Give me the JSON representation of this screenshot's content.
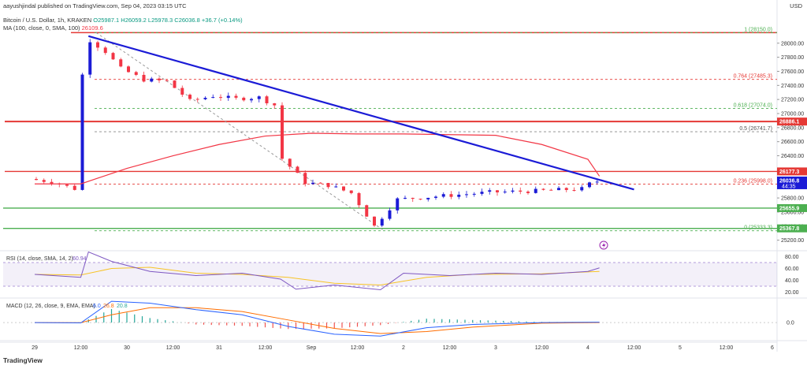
{
  "header": {
    "published_by": "aayushjindal published on TradingView.com, Sep 04, 2023 03:15 UTC",
    "symbol": "Bitcoin / U.S. Dollar, 1h, KRAKEN",
    "o": "O25987.1",
    "h": "H26059.2",
    "l": "L25978.3",
    "c": "C26036.8",
    "chg": "+36.7 (+0.14%)",
    "ma_label": "MA (100, close, 0, SMA, 100)",
    "ma_value": "26109.6",
    "currency": "USD"
  },
  "footer": {
    "logo": "TradingView"
  },
  "colors": {
    "up": "#089981",
    "down": "#f23645",
    "trend": "#1b1bd6",
    "ma": "#f23645",
    "rsi": "#7e57c2",
    "rsi_ma": "#f7c325",
    "macd": "#2962ff",
    "signal": "#ff6d00",
    "level_red": "#e53935",
    "level_green": "#4caf50"
  },
  "chart_data": [
    {
      "type": "line",
      "panel": "price",
      "symbol": "BTCUSD",
      "interval": "1h",
      "ylim": [
        25050,
        28300
      ],
      "yticks": [
        25200,
        25400,
        25600,
        25800,
        26000,
        26200,
        26400,
        26600,
        26800,
        27000,
        27200,
        27400,
        27600,
        27800,
        28000
      ],
      "xticks": [
        "29",
        "12:00",
        "30",
        "12:00",
        "31",
        "12:00",
        "Sep",
        "12:00",
        "2",
        "12:00",
        "3",
        "12:00",
        "4",
        "12:00",
        "5",
        "12:00",
        "6"
      ],
      "price_path": [
        [
          "Aug 29 00:00",
          26070
        ],
        [
          "Aug 29 06:00",
          26030
        ],
        [
          "Aug 29 12:00",
          25930
        ],
        [
          "Aug 29 12:30",
          26020
        ],
        [
          "Aug 29 14:00",
          27550
        ],
        [
          "Aug 29 16:00",
          28040
        ],
        [
          "Aug 29 20:00",
          27880
        ],
        [
          "Aug 30 00:00",
          27640
        ],
        [
          "Aug 30 06:00",
          27480
        ],
        [
          "Aug 30 12:00",
          27460
        ],
        [
          "Aug 30 18:00",
          27180
        ],
        [
          "Aug 31 00:00",
          27250
        ],
        [
          "Aug 31 06:00",
          27210
        ],
        [
          "Aug 31 12:00",
          27230
        ],
        [
          "Aug 31 16:00",
          27120
        ],
        [
          "Aug 31 18:00",
          26360
        ],
        [
          "Sep 01 00:00",
          26020
        ],
        [
          "Sep 01 06:00",
          25980
        ],
        [
          "Sep 01 12:00",
          25870
        ],
        [
          "Sep 01 18:00",
          25400
        ],
        [
          "Sep 02 00:00",
          25780
        ],
        [
          "Sep 02 12:00",
          25830
        ],
        [
          "Sep 03 00:00",
          25880
        ],
        [
          "Sep 03 12:00",
          25900
        ],
        [
          "Sep 04 00:00",
          25930
        ],
        [
          "Sep 04 03:00",
          26036.8
        ]
      ],
      "series": [
        {
          "name": "MA (100, close, 0, SMA, 100)",
          "points": [
            [
              "Aug 29 00:00",
              26000
            ],
            [
              "Aug 29 12:00",
              26000
            ],
            [
              "Aug 30 00:00",
              26220
            ],
            [
              "Aug 30 12:00",
              26400
            ],
            [
              "Aug 31 00:00",
              26560
            ],
            [
              "Aug 31 12:00",
              26680
            ],
            [
              "Sep 01 00:00",
              26720
            ],
            [
              "Sep 01 12:00",
              26710
            ],
            [
              "Sep 02 00:00",
              26710
            ],
            [
              "Sep 02 12:00",
              26700
            ],
            [
              "Sep 03 00:00",
              26690
            ],
            [
              "Sep 03 12:00",
              26560
            ],
            [
              "Sep 04 00:00",
              26350
            ],
            [
              "Sep 04 03:00",
              26109.6
            ]
          ]
        }
      ],
      "trendline": [
        [
          "Aug 29 14:00",
          28100
        ],
        [
          "Sep 04 12:00",
          25920
        ]
      ],
      "fib_diagonal": [
        [
          "Aug 29 16:00",
          28150
        ],
        [
          "Sep 01 19:00",
          25333.3
        ]
      ],
      "fib_levels": [
        {
          "ratio": "1",
          "label": "1 (28150.0)",
          "price": 28150
        },
        {
          "ratio": "0.764",
          "label": "0.764 (27485.3)",
          "price": 27485.3
        },
        {
          "ratio": "0.618",
          "label": "0.618 (27074.0)",
          "price": 27074
        },
        {
          "ratio": "0.5",
          "label": "0.5 (26741.7)",
          "price": 26741.7
        },
        {
          "ratio": "0.236",
          "label": "0.236 (25998.0)",
          "price": 25998
        },
        {
          "ratio": "0",
          "label": "0 (25333.3)",
          "price": 25333.3
        }
      ],
      "horizontal_levels": [
        {
          "price": 28150,
          "color": "red"
        },
        {
          "price": 26886.1,
          "color": "red",
          "label": "26886.1"
        },
        {
          "price": 26177.3,
          "color": "red",
          "label": "26177.3"
        },
        {
          "price": 25655.9,
          "color": "green",
          "label": "25655.9"
        },
        {
          "price": 25367.8,
          "color": "green",
          "label": "25367.8"
        }
      ],
      "price_label": {
        "value": "26036.8",
        "countdown": "44:35"
      }
    },
    {
      "type": "line",
      "panel": "rsi",
      "label": "RSI (14, close, SMA, 14, 2)",
      "value": "60.94",
      "ylim": [
        10,
        90
      ],
      "yticks": [
        20,
        40,
        60,
        80
      ],
      "band": [
        30,
        70
      ],
      "series": [
        {
          "name": "RSI",
          "points": [
            [
              "Aug 29 00:00",
              50
            ],
            [
              "Aug 29 12:00",
              45
            ],
            [
              "Aug 29 14:00",
              88
            ],
            [
              "Aug 29 20:00",
              72
            ],
            [
              "Aug 30 06:00",
              55
            ],
            [
              "Aug 30 18:00",
              48
            ],
            [
              "Aug 31 06:00",
              52
            ],
            [
              "Aug 31 16:00",
              42
            ],
            [
              "Aug 31 20:00",
              25
            ],
            [
              "Sep 01 06:00",
              32
            ],
            [
              "Sep 01 18:00",
              24
            ],
            [
              "Sep 02 00:00",
              52
            ],
            [
              "Sep 02 12:00",
              48
            ],
            [
              "Sep 03 00:00",
              52
            ],
            [
              "Sep 03 12:00",
              50
            ],
            [
              "Sep 04 00:00",
              55
            ],
            [
              "Sep 04 03:00",
              61
            ]
          ]
        },
        {
          "name": "MA",
          "points": [
            [
              "Aug 29 00:00",
              50
            ],
            [
              "Aug 29 12:00",
              49
            ],
            [
              "Aug 29 20:00",
              60
            ],
            [
              "Aug 30 06:00",
              62
            ],
            [
              "Aug 30 18:00",
              52
            ],
            [
              "Aug 31 06:00",
              50
            ],
            [
              "Aug 31 18:00",
              45
            ],
            [
              "Sep 01 06:00",
              35
            ],
            [
              "Sep 01 18:00",
              32
            ],
            [
              "Sep 02 06:00",
              45
            ],
            [
              "Sep 02 18:00",
              50
            ],
            [
              "Sep 03 12:00",
              51
            ],
            [
              "Sep 04 03:00",
              55
            ]
          ]
        }
      ]
    },
    {
      "type": "line",
      "panel": "macd",
      "label": "MACD (12, 26, close, 9, EMA, EMA)",
      "values": [
        "6.0",
        "26.8",
        "20.8"
      ],
      "yticks": [
        0
      ],
      "series": [
        {
          "name": "MACD",
          "points": [
            [
              "Aug 29 00:00",
              0
            ],
            [
              "Aug 29 12:00",
              -5
            ],
            [
              "Aug 29 20:00",
              330
            ],
            [
              "Aug 30 06:00",
              300
            ],
            [
              "Aug 30 18:00",
              200
            ],
            [
              "Aug 31 06:00",
              120
            ],
            [
              "Aug 31 18:00",
              -60
            ],
            [
              "Sep 01 06:00",
              -180
            ],
            [
              "Sep 01 18:00",
              -210
            ],
            [
              "Sep 02 06:00",
              -80
            ],
            [
              "Sep 02 18:00",
              -30
            ],
            [
              "Sep 03 12:00",
              0
            ],
            [
              "Sep 04 03:00",
              6
            ]
          ]
        },
        {
          "name": "Signal",
          "points": [
            [
              "Aug 29 00:00",
              0
            ],
            [
              "Aug 29 12:00",
              -2
            ],
            [
              "Aug 29 20:00",
              120
            ],
            [
              "Aug 30 06:00",
              230
            ],
            [
              "Aug 30 18:00",
              230
            ],
            [
              "Aug 31 06:00",
              170
            ],
            [
              "Aug 31 18:00",
              40
            ],
            [
              "Sep 01 06:00",
              -90
            ],
            [
              "Sep 01 18:00",
              -170
            ],
            [
              "Sep 02 06:00",
              -140
            ],
            [
              "Sep 02 18:00",
              -70
            ],
            [
              "Sep 03 12:00",
              -10
            ],
            [
              "Sep 04 03:00",
              0
            ]
          ]
        }
      ]
    }
  ]
}
